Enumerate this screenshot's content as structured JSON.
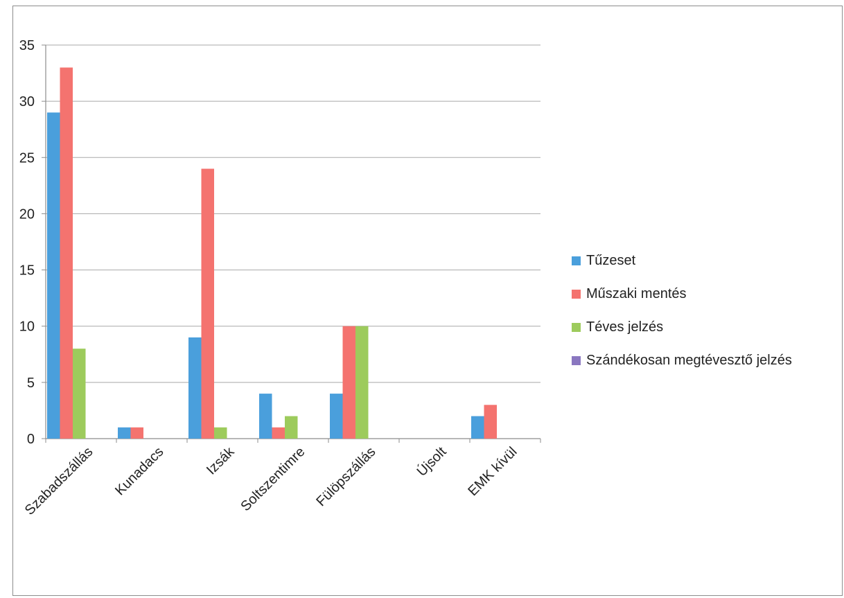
{
  "chart_data": {
    "type": "bar",
    "title": "",
    "xlabel": "",
    "ylabel": "",
    "categories": [
      "Szabadszállás",
      "Kunadacs",
      "Izsák",
      "Soltszentimre",
      "Fülöpszállás",
      "Újsolt",
      "EMK kívül"
    ],
    "series": [
      {
        "name": "Tűzeset",
        "color": "#4a9fdc",
        "values": [
          29,
          1,
          9,
          4,
          4,
          0,
          2
        ]
      },
      {
        "name": "Műszaki mentés",
        "color": "#f4736f",
        "values": [
          33,
          1,
          24,
          1,
          10,
          0,
          3
        ]
      },
      {
        "name": "Téves jelzés",
        "color": "#9dcb5c",
        "values": [
          8,
          0,
          1,
          2,
          10,
          0,
          0
        ]
      },
      {
        "name": "Szándékosan megtévesztő jelzés",
        "color": "#8a77c0",
        "values": [
          0,
          0,
          0,
          0,
          0,
          0,
          0
        ]
      }
    ],
    "ylim": [
      0,
      35
    ],
    "yticks": [
      "0",
      "5",
      "10",
      "15",
      "20",
      "25",
      "30",
      "35"
    ],
    "grid": true,
    "legend_position": "right"
  }
}
